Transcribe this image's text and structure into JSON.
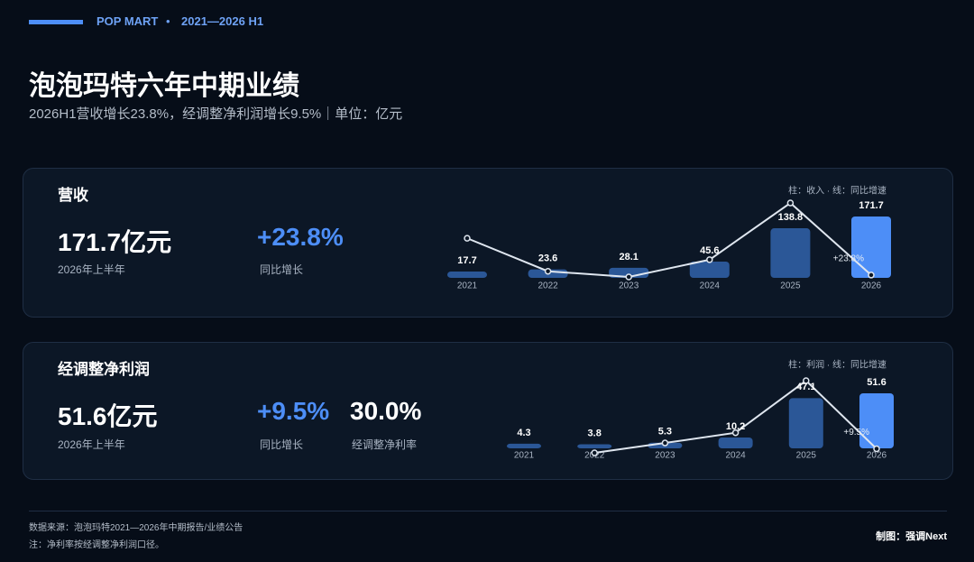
{
  "header": {
    "brand": "POP MART",
    "separator": "•",
    "period": "2021—2026 H1",
    "title": "泡泡玛特六年中期业绩",
    "subtitle": "2026H1营收增长23.8%，经调整净利润增长9.5%｜单位：亿元"
  },
  "panels": [
    {
      "title": "营收",
      "kpis": [
        {
          "value": "171.7亿元",
          "label": "2026年上半年"
        },
        {
          "value": "+23.8%",
          "label": "同比增长"
        }
      ]
    },
    {
      "title": "经调整净利润",
      "kpis": [
        {
          "value": "51.6亿元",
          "label": "2026年上半年"
        },
        {
          "value": "+9.5%",
          "label": "同比增长"
        },
        {
          "value": "30.0%",
          "label": "经调整净利率"
        }
      ]
    }
  ],
  "chart_data": [
    {
      "type": "combo",
      "legend_text": "柱：收入 · 线：同比增速",
      "categories": [
        "2021",
        "2022",
        "2023",
        "2024",
        "2025",
        "2026"
      ],
      "series": [
        {
          "type": "bar",
          "colors": [
            "#2b5797",
            "#2b5797",
            "#2b5797",
            "#2b5797",
            "#2b5797",
            "#4d8ef7"
          ],
          "values": [
            17.7,
            23.6,
            28.1,
            45.6,
            138.8,
            171.7
          ]
        },
        {
          "type": "line",
          "color": "#dfe6ef",
          "values": [
            116,
            33.3,
            19.1,
            62.3,
            204.4,
            23.8
          ],
          "value_labels": [
            null,
            null,
            null,
            null,
            null,
            "+23.8%"
          ]
        }
      ]
    },
    {
      "type": "combo",
      "legend_text": "柱：利润 · 线：同比增速",
      "categories": [
        "2021",
        "2022",
        "2023",
        "2024",
        "2025",
        "2026"
      ],
      "series": [
        {
          "type": "bar",
          "colors": [
            "#2b5797",
            "#2b5797",
            "#2b5797",
            "#2b5797",
            "#2b5797",
            "#4d8ef7"
          ],
          "values": [
            4.3,
            3.8,
            5.3,
            10.2,
            47.1,
            51.6
          ]
        },
        {
          "type": "line",
          "color": "#dfe6ef",
          "values": [
            null,
            -11.6,
            39.5,
            92.5,
            361.8,
            9.5
          ],
          "value_labels": [
            null,
            null,
            null,
            null,
            null,
            "+9.5%"
          ]
        }
      ]
    }
  ],
  "footer": {
    "source": "数据来源：泡泡玛特2021—2026年中期报告/业绩公告",
    "note": "注：净利率按经调整净利润口径。",
    "credit": "制图：强调Next"
  }
}
